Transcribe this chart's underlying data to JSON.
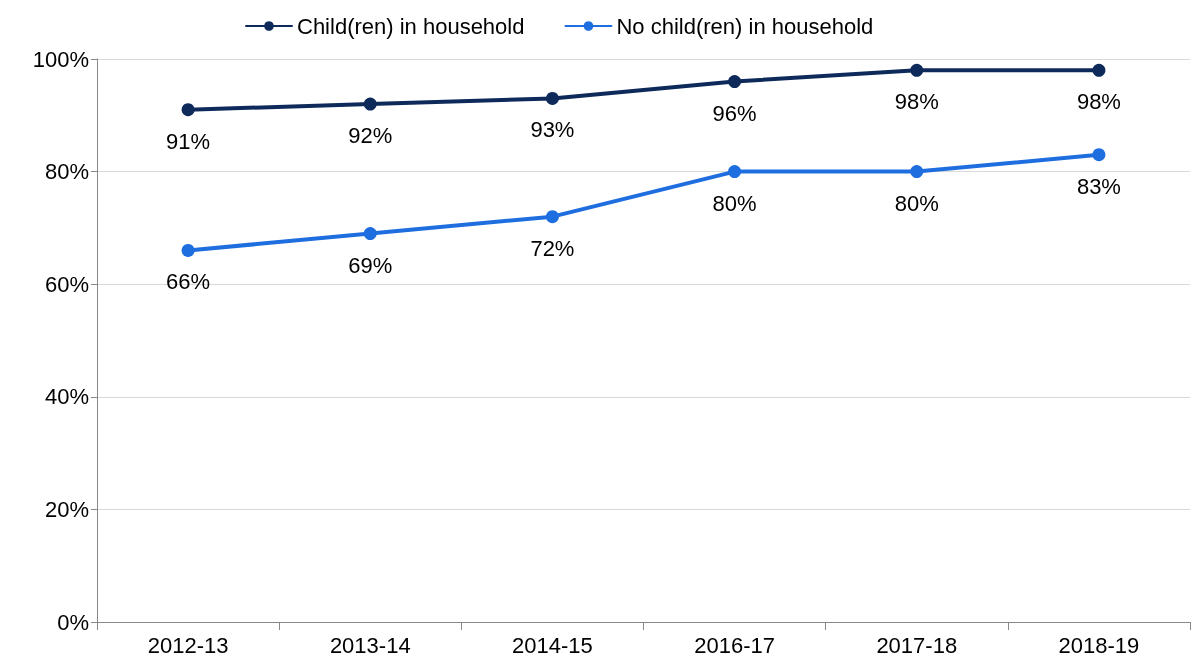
{
  "chart_data": {
    "type": "line",
    "categories": [
      "2012-13",
      "2013-14",
      "2014-15",
      "2016-17",
      "2017-18",
      "2018-19"
    ],
    "series": [
      {
        "name": "Child(ren) in household",
        "color": "#0e2a5a",
        "values": [
          91,
          92,
          93,
          96,
          98,
          98
        ],
        "value_labels": [
          "91%",
          "92%",
          "93%",
          "96%",
          "98%",
          "98%"
        ]
      },
      {
        "name": "No child(ren) in household",
        "color": "#1f6ee0",
        "values": [
          66,
          69,
          72,
          80,
          80,
          83
        ],
        "value_labels": [
          "66%",
          "69%",
          "72%",
          "80%",
          "80%",
          "83%"
        ]
      }
    ],
    "ylim": [
      0,
      100
    ],
    "yticks": [
      {
        "value": 0,
        "label": "0%"
      },
      {
        "value": 20,
        "label": "20%"
      },
      {
        "value": 40,
        "label": "40%"
      },
      {
        "value": 60,
        "label": "60%"
      },
      {
        "value": 80,
        "label": "80%"
      },
      {
        "value": 100,
        "label": "100%"
      }
    ],
    "grid": "y",
    "legend": "top",
    "marker": "circle",
    "line_style": "solid"
  }
}
